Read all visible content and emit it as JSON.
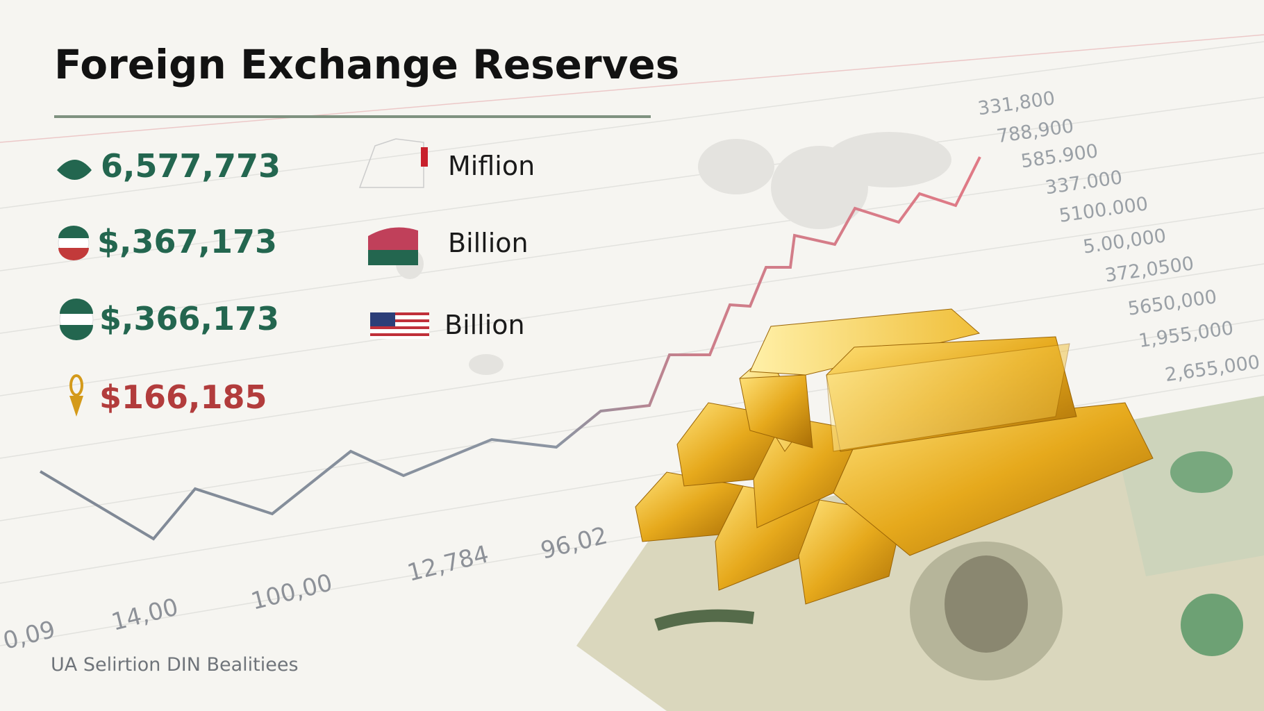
{
  "title": "Foreign Exchange Reserves",
  "stats": [
    {
      "value": "6,577,773",
      "unit": "Miflion"
    },
    {
      "value": "$,367,173",
      "unit": "Billion"
    },
    {
      "value": "$,366,173",
      "unit": "Billion"
    },
    {
      "value": "$166,185"
    }
  ],
  "x_labels": [
    "0,09",
    "14,00",
    "100,00",
    "12,784",
    "96,02"
  ],
  "y_labels": [
    "331,800",
    "788,900",
    "585.900",
    "337.000",
    "5100.000",
    "5.00,000",
    "372,0500",
    "5650,000",
    "1,955,000",
    "2,655,000"
  ],
  "footer": "UA Selirtion DIN Bealitiees"
}
